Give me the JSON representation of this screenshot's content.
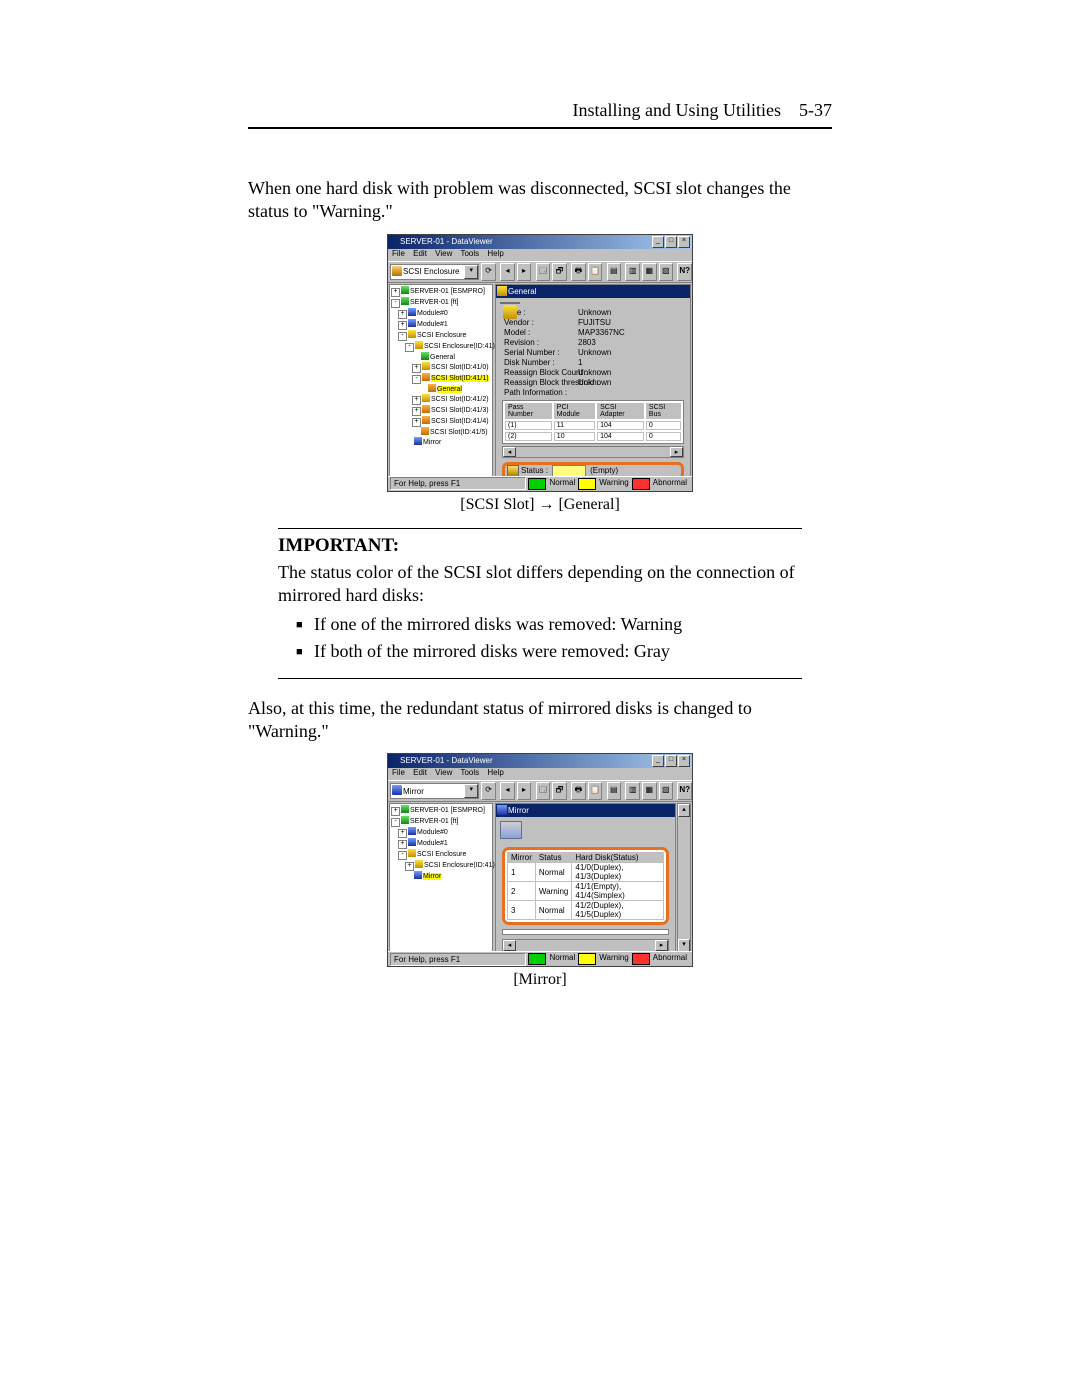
{
  "header": {
    "title": "Installing and Using Utilities",
    "page": "5-37"
  },
  "para1": "When one hard disk with problem was disconnected, SCSI slot changes the status to \"Warning.\"",
  "caption1": "[SCSI Slot] → [General]",
  "important": {
    "heading": "IMPORTANT:",
    "text": "The status color of the SCSI slot differs depending on the connection of mirrored hard disks:",
    "bullets": [
      "If one of the mirrored disks was removed: Warning",
      "If both of the mirrored disks were removed: Gray"
    ]
  },
  "para2": "Also, at this time, the redundant status of mirrored disks is changed to \"Warning.\"",
  "caption2": "[Mirror]",
  "ss1": {
    "title": "SERVER-01 - DataViewer",
    "menu": [
      "File",
      "Edit",
      "View",
      "Tools",
      "Help"
    ],
    "combo": "SCSI Enclosure",
    "tree": [
      {
        "ind": 0,
        "box": "+",
        "cls": "ti-green",
        "t": "SERVER-01 [ESMPRO]"
      },
      {
        "ind": 0,
        "box": "-",
        "cls": "ti-green",
        "t": "SERVER-01 [ft]"
      },
      {
        "ind": 1,
        "box": "+",
        "cls": "ti-blue",
        "t": "Module#0"
      },
      {
        "ind": 1,
        "box": "+",
        "cls": "ti-blue",
        "t": "Module#1"
      },
      {
        "ind": 1,
        "box": "-",
        "cls": "ti-yellow",
        "t": "SCSI Enclosure"
      },
      {
        "ind": 2,
        "box": "-",
        "cls": "ti-yellow",
        "t": "SCSI Enclosure(ID:41)"
      },
      {
        "ind": 3,
        "box": "",
        "cls": "ti-green",
        "t": "General"
      },
      {
        "ind": 3,
        "box": "+",
        "cls": "ti-yellow",
        "t": "SCSI Slot(ID:41/0)"
      },
      {
        "ind": 3,
        "box": "-",
        "cls": "ti-orange",
        "t": "SCSI Slot(ID:41/1)",
        "sel": true
      },
      {
        "ind": 4,
        "box": "",
        "cls": "ti-orange",
        "t": "General",
        "sel": true
      },
      {
        "ind": 3,
        "box": "+",
        "cls": "ti-yellow",
        "t": "SCSI Slot(ID:41/2)"
      },
      {
        "ind": 3,
        "box": "+",
        "cls": "ti-orange",
        "t": "SCSI Slot(ID:41/3)"
      },
      {
        "ind": 3,
        "box": "+",
        "cls": "ti-orange",
        "t": "SCSI Slot(ID:41/4)"
      },
      {
        "ind": 3,
        "box": "",
        "cls": "ti-orange",
        "t": "SCSI Slot(ID:41/5)"
      },
      {
        "ind": 2,
        "box": "",
        "cls": "ti-blue",
        "t": "Mirror"
      }
    ],
    "panel_title": "General",
    "info": [
      [
        "Type :",
        "Unknown"
      ],
      [
        "Vendor :",
        "FUJITSU"
      ],
      [
        "Model :",
        "MAP3367NC"
      ],
      [
        "Revision :",
        "2803"
      ],
      [
        "Serial Number :",
        "Unknown"
      ],
      [
        "Disk Number :",
        "1"
      ],
      [
        "Reassign Block Count :",
        "Unknown"
      ],
      [
        "Reassign Block threshold :",
        "Unknown"
      ],
      [
        "Path Information :",
        ""
      ]
    ],
    "path_headers": [
      "Pass Number",
      "PCI Module",
      "SCSI Adapter",
      "SCSI Bus"
    ],
    "path_rows": [
      [
        "(1)",
        "11",
        "104",
        "0"
      ],
      [
        "(2)",
        "10",
        "104",
        "0"
      ]
    ],
    "status_label": "Status :",
    "status_value": "(Empty)",
    "help": "For Help, press F1",
    "legend": [
      "Normal",
      "Warning",
      "Abnormal"
    ]
  },
  "ss2": {
    "title": "SERVER-01 - DataViewer",
    "menu": [
      "File",
      "Edit",
      "View",
      "Tools",
      "Help"
    ],
    "combo": "Mirror",
    "tree": [
      {
        "ind": 0,
        "box": "+",
        "cls": "ti-green",
        "t": "SERVER-01 [ESMPRO]"
      },
      {
        "ind": 0,
        "box": "-",
        "cls": "ti-green",
        "t": "SERVER-01 [ft]"
      },
      {
        "ind": 1,
        "box": "+",
        "cls": "ti-blue",
        "t": "Module#0"
      },
      {
        "ind": 1,
        "box": "+",
        "cls": "ti-blue",
        "t": "Module#1"
      },
      {
        "ind": 1,
        "box": "-",
        "cls": "ti-yellow",
        "t": "SCSI Enclosure"
      },
      {
        "ind": 2,
        "box": "+",
        "cls": "ti-yellow",
        "t": "SCSI Enclosure(ID:41)"
      },
      {
        "ind": 2,
        "box": "",
        "cls": "ti-blue",
        "t": "Mirror",
        "sel": true
      }
    ],
    "panel_title": "Mirror",
    "mirror_headers": [
      "Mirror",
      "Status",
      "Hard Disk(Status)"
    ],
    "mirror_rows": [
      [
        "1",
        "Normal",
        "41/0(Duplex), 41/3(Duplex)"
      ],
      [
        "2",
        "Warning",
        "41/1(Empty), 41/4(Simplex)"
      ],
      [
        "3",
        "Normal",
        "41/2(Duplex), 41/5(Duplex)"
      ]
    ],
    "help": "For Help, press F1",
    "legend": [
      "Normal",
      "Warning",
      "Abnormal"
    ]
  }
}
